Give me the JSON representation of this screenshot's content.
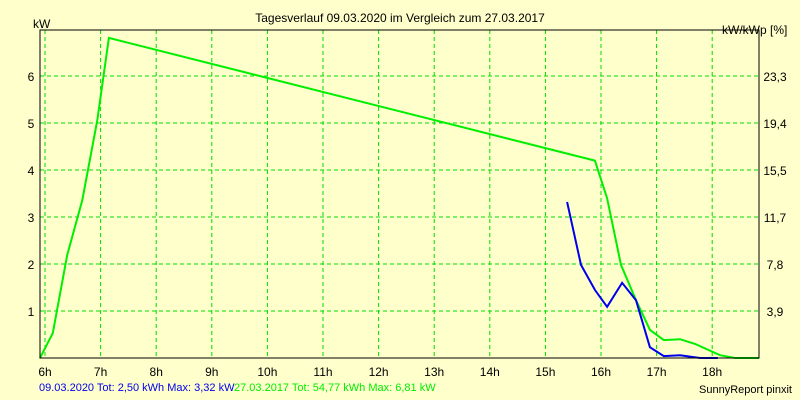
{
  "chart_data": {
    "type": "line",
    "title": "Tagesverlauf 09.03.2020 im Vergleich zum 27.03.2017",
    "ylabel": "kW",
    "ylabel_right": "kW/kWp [%]",
    "xlim": [
      5.91,
      18.84
    ],
    "ylim": [
      0,
      6.8
    ],
    "x_ticks": [
      {
        "v": 6,
        "label": "6h"
      },
      {
        "v": 7,
        "label": "7h"
      },
      {
        "v": 8,
        "label": "8h"
      },
      {
        "v": 9,
        "label": "9h"
      },
      {
        "v": 10,
        "label": "10h"
      },
      {
        "v": 11,
        "label": "11h"
      },
      {
        "v": 12,
        "label": "12h"
      },
      {
        "v": 13,
        "label": "13h"
      },
      {
        "v": 14,
        "label": "14h"
      },
      {
        "v": 15,
        "label": "15h"
      },
      {
        "v": 16,
        "label": "16h"
      },
      {
        "v": 17,
        "label": "17h"
      },
      {
        "v": 18,
        "label": "18h"
      }
    ],
    "y_ticks": [
      {
        "v": 1,
        "label": "1"
      },
      {
        "v": 2,
        "label": "2"
      },
      {
        "v": 3,
        "label": "3"
      },
      {
        "v": 4,
        "label": "4"
      },
      {
        "v": 5,
        "label": "5"
      },
      {
        "v": 6,
        "label": "6"
      }
    ],
    "y_right_ticks": [
      {
        "v": 1,
        "label": "3,9"
      },
      {
        "v": 2,
        "label": "7,8"
      },
      {
        "v": 3,
        "label": "11,7"
      },
      {
        "v": 4,
        "label": "15,5"
      },
      {
        "v": 5,
        "label": "19,4"
      },
      {
        "v": 6,
        "label": "23,3"
      }
    ],
    "grid": true,
    "series": [
      {
        "name": "27.03.2017",
        "color": "#00ee00",
        "x": [
          5.91,
          6.14,
          6.4,
          6.67,
          6.94,
          7.15,
          15.89,
          16.11,
          16.36,
          16.63,
          16.88,
          17.13,
          17.42,
          17.69,
          18.14,
          18.41,
          18.84
        ],
        "y": [
          0,
          0.53,
          2.19,
          3.36,
          5.06,
          6.81,
          4.2,
          3.4,
          1.98,
          1.23,
          0.6,
          0.38,
          0.4,
          0.3,
          0.06,
          0,
          0
        ]
      },
      {
        "name": "09.03.2020",
        "color": "#0000ee",
        "x": [
          15.39,
          15.64,
          15.89,
          16.11,
          16.38,
          16.63,
          16.88,
          17.13,
          17.42,
          17.78,
          18.1
        ],
        "y": [
          3.32,
          1.98,
          1.45,
          1.09,
          1.6,
          1.23,
          0.23,
          0.04,
          0.06,
          0,
          0
        ]
      }
    ],
    "legend": [
      {
        "text": "09.03.2020 Tot: 2,50 kWh Max: 3,32 kW",
        "color": "#0000ee"
      },
      {
        "text": "27.03.2017 Tot: 54,77 kWh Max: 6,81 kW",
        "color": "#00ee00"
      }
    ],
    "footer": "SunnyReport pinxit"
  }
}
